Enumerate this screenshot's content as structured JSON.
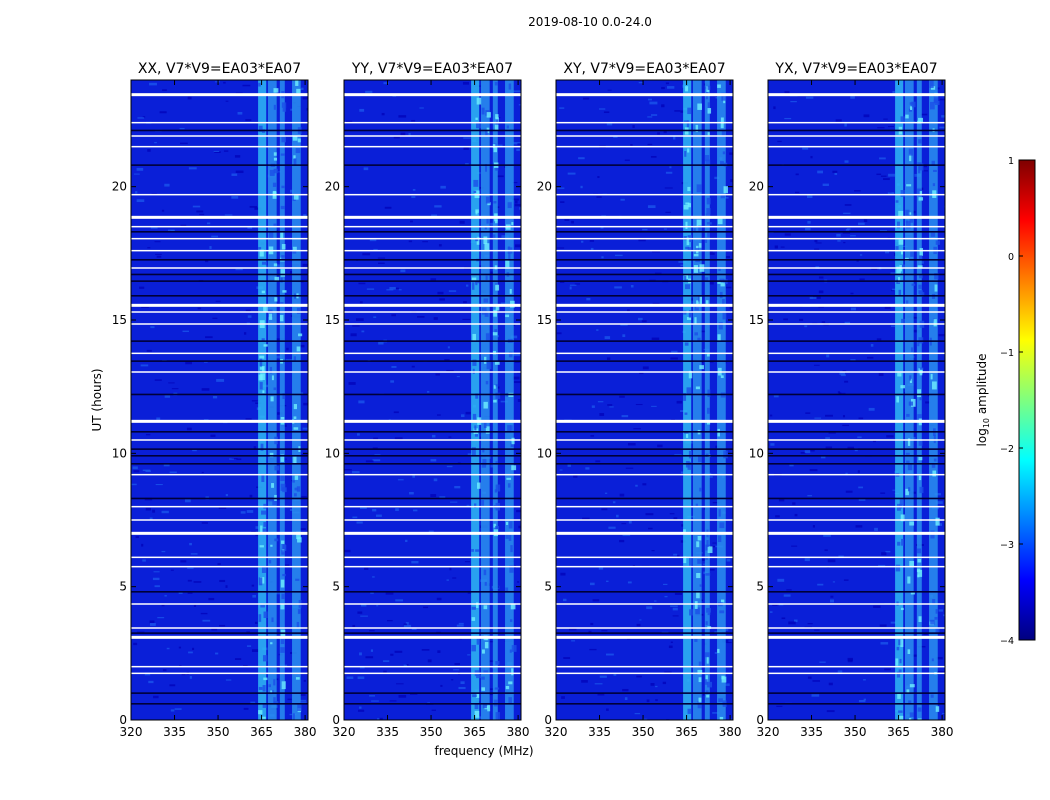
{
  "figure": {
    "suptitle": "2019-08-10 0.0-24.0"
  },
  "chart_data": {
    "type": "heatmap",
    "suptitle": "2019-08-10 0.0-24.0",
    "xlabel": "frequency (MHz)",
    "ylabel": "UT (hours)",
    "xlim": [
      320,
      381
    ],
    "ylim": [
      0,
      24
    ],
    "xticks": [
      "320",
      "335",
      "350",
      "365",
      "380"
    ],
    "yticks": [
      "0",
      "5",
      "10",
      "15",
      "20"
    ],
    "panels": [
      {
        "title": "XX, V7*V9=EA03*EA07",
        "pol": "XX"
      },
      {
        "title": "YY, V7*V9=EA03*EA07",
        "pol": "YY"
      },
      {
        "title": "XY, V7*V9=EA03*EA07",
        "pol": "XY"
      },
      {
        "title": "YX, V7*V9=EA03*EA07",
        "pol": "YX"
      }
    ],
    "colorbar": {
      "label": "log10 amplitude",
      "label_base": "log",
      "label_sub": "10",
      "label_rest": " amplitude",
      "range": [
        -4,
        1
      ],
      "ticks": [
        "1",
        "0",
        "−1",
        "−2",
        "−3",
        "−4"
      ],
      "colormap": [
        "#00007f",
        "#0000ff",
        "#007fff",
        "#00ffff",
        "#7fff7f",
        "#ffff00",
        "#ff7f00",
        "#ff0000",
        "#7f0000"
      ]
    },
    "flagged_white_hours": [
      23.45,
      22.4,
      21.9,
      21.5,
      19.7,
      18.85,
      18.5,
      18.05,
      17.6,
      16.95,
      15.55,
      15.3,
      14.85,
      13.75,
      13.05,
      11.2,
      10.5,
      9.2,
      8.0,
      7.5,
      7.0,
      6.1,
      5.75,
      4.35,
      3.45,
      3.1,
      2.0,
      1.75
    ],
    "rfi_band_mhz": [
      [
        363.8,
        366.6
      ],
      [
        367.2,
        370.2
      ],
      [
        371.3,
        373.0
      ],
      [
        375.5,
        378.5
      ]
    ]
  }
}
